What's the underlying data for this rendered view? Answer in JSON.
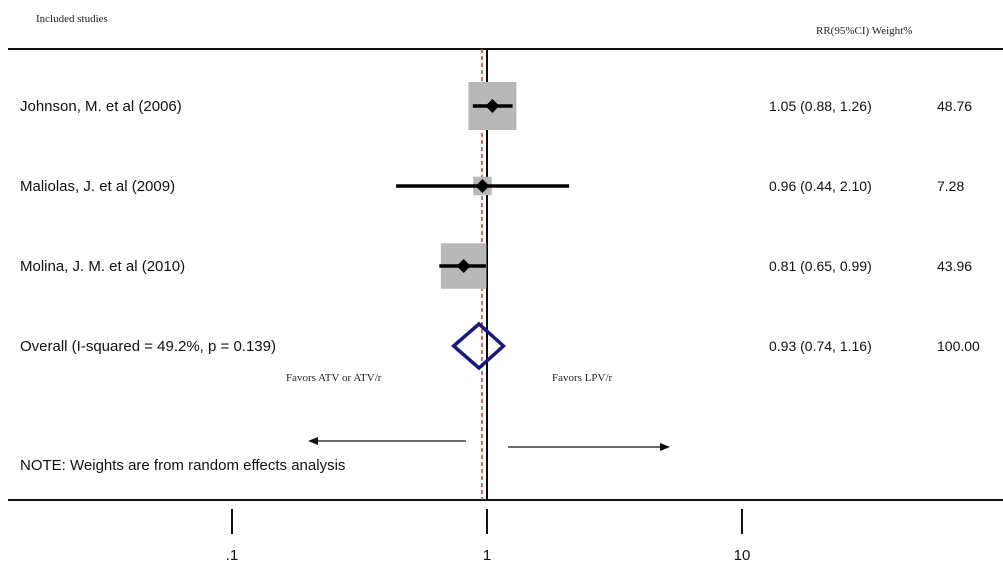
{
  "chart_data": {
    "type": "forest",
    "x_scale": "log",
    "xlim": [
      0.04,
      40
    ],
    "x_ticks": [
      0.1,
      1,
      10
    ],
    "x_tick_labels": [
      ".1",
      "1",
      "10"
    ],
    "header_left": "Included studies",
    "header_right": "RR(95%CI) Weight%",
    "studies": [
      {
        "label": "Johnson, M. et al (2006)",
        "rr": 1.05,
        "lo": 0.88,
        "hi": 1.26,
        "weight": 48.76,
        "ci_text": "1.05 (0.88, 1.26)",
        "weight_text": "48.76"
      },
      {
        "label": "Maliolas, J. et al (2009)",
        "rr": 0.96,
        "lo": 0.44,
        "hi": 2.1,
        "weight": 7.28,
        "ci_text": "0.96 (0.44, 2.10)",
        "weight_text": "7.28"
      },
      {
        "label": "Molina, J. M. et al (2010)",
        "rr": 0.81,
        "lo": 0.65,
        "hi": 0.99,
        "weight": 43.96,
        "ci_text": "0.81 (0.65, 0.99)",
        "weight_text": "43.96"
      }
    ],
    "overall": {
      "label": "Overall  (I-squared = 49.2%, p = 0.139)",
      "rr": 0.93,
      "lo": 0.74,
      "hi": 1.16,
      "ci_text": "0.93 (0.74, 1.16)",
      "weight_text": "100.00"
    },
    "favors_left": "Favors ATV or ATV/r",
    "favors_right": "Favors LPV/r",
    "note": "NOTE: Weights are from random effects analysis",
    "colors": {
      "box": "#b8b8b8",
      "diamond": "#1a1a7a",
      "ref_line": "#000000",
      "overall_line": "#c0392b",
      "text": "#111111"
    }
  }
}
